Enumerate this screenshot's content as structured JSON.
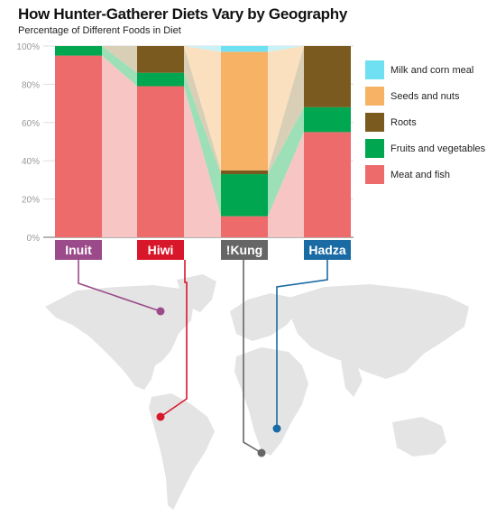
{
  "title": "How Hunter-Gatherer Diets Vary by Geography",
  "subtitle": "Percentage of Different Foods in Diet",
  "chart_data": {
    "type": "bar",
    "stacked": true,
    "title": "How Hunter-Gatherer Diets Vary by Geography",
    "subtitle": "Percentage of Different Foods in Diet",
    "categories": [
      "Inuit",
      "Hiwi",
      "!Kung",
      "Hadza"
    ],
    "category_colors": [
      "#9b4a8a",
      "#d9172b",
      "#666666",
      "#1a6aa3"
    ],
    "ylim": [
      0,
      100
    ],
    "yticks": [
      "0%",
      "20%",
      "40%",
      "60%",
      "80%",
      "100%"
    ],
    "legend_position": "right",
    "series": [
      {
        "name": "Meat and fish",
        "color": "#ee6b6b",
        "link_color": "#f8c5c5",
        "values": [
          95,
          79,
          11,
          55
        ]
      },
      {
        "name": "Fruits and vegetables",
        "color": "#00a650",
        "link_color": "#9ddfb6",
        "values": [
          5,
          7,
          22,
          13
        ]
      },
      {
        "name": "Roots",
        "color": "#7a5a1e",
        "link_color": "#d9cfb6",
        "values": [
          0,
          14,
          2,
          32
        ]
      },
      {
        "name": "Seeds and nuts",
        "color": "#f7b266",
        "link_color": "#fbe0bf",
        "values": [
          0,
          0,
          62,
          0
        ]
      },
      {
        "name": "Milk and corn meal",
        "color": "#6ee0f2",
        "link_color": "#c8f2f8",
        "values": [
          0,
          0,
          3,
          0
        ]
      }
    ]
  }
}
